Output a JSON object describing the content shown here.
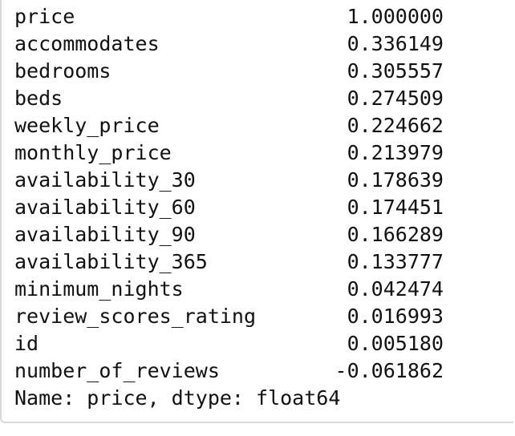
{
  "series": {
    "rows": [
      {
        "key": "price",
        "value": "1.000000"
      },
      {
        "key": "accommodates",
        "value": "0.336149"
      },
      {
        "key": "bedrooms",
        "value": "0.305557"
      },
      {
        "key": "beds",
        "value": "0.274509"
      },
      {
        "key": "weekly_price",
        "value": "0.224662"
      },
      {
        "key": "monthly_price",
        "value": "0.213979"
      },
      {
        "key": "availability_30",
        "value": "0.178639"
      },
      {
        "key": "availability_60",
        "value": "0.174451"
      },
      {
        "key": "availability_90",
        "value": "0.166289"
      },
      {
        "key": "availability_365",
        "value": "0.133777"
      },
      {
        "key": "minimum_nights",
        "value": "0.042474"
      },
      {
        "key": "review_scores_rating",
        "value": "0.016993"
      },
      {
        "key": "id",
        "value": "0.005180"
      },
      {
        "key": "number_of_reviews",
        "value": "-0.061862"
      }
    ],
    "footer": "Name: price, dtype: float64"
  }
}
